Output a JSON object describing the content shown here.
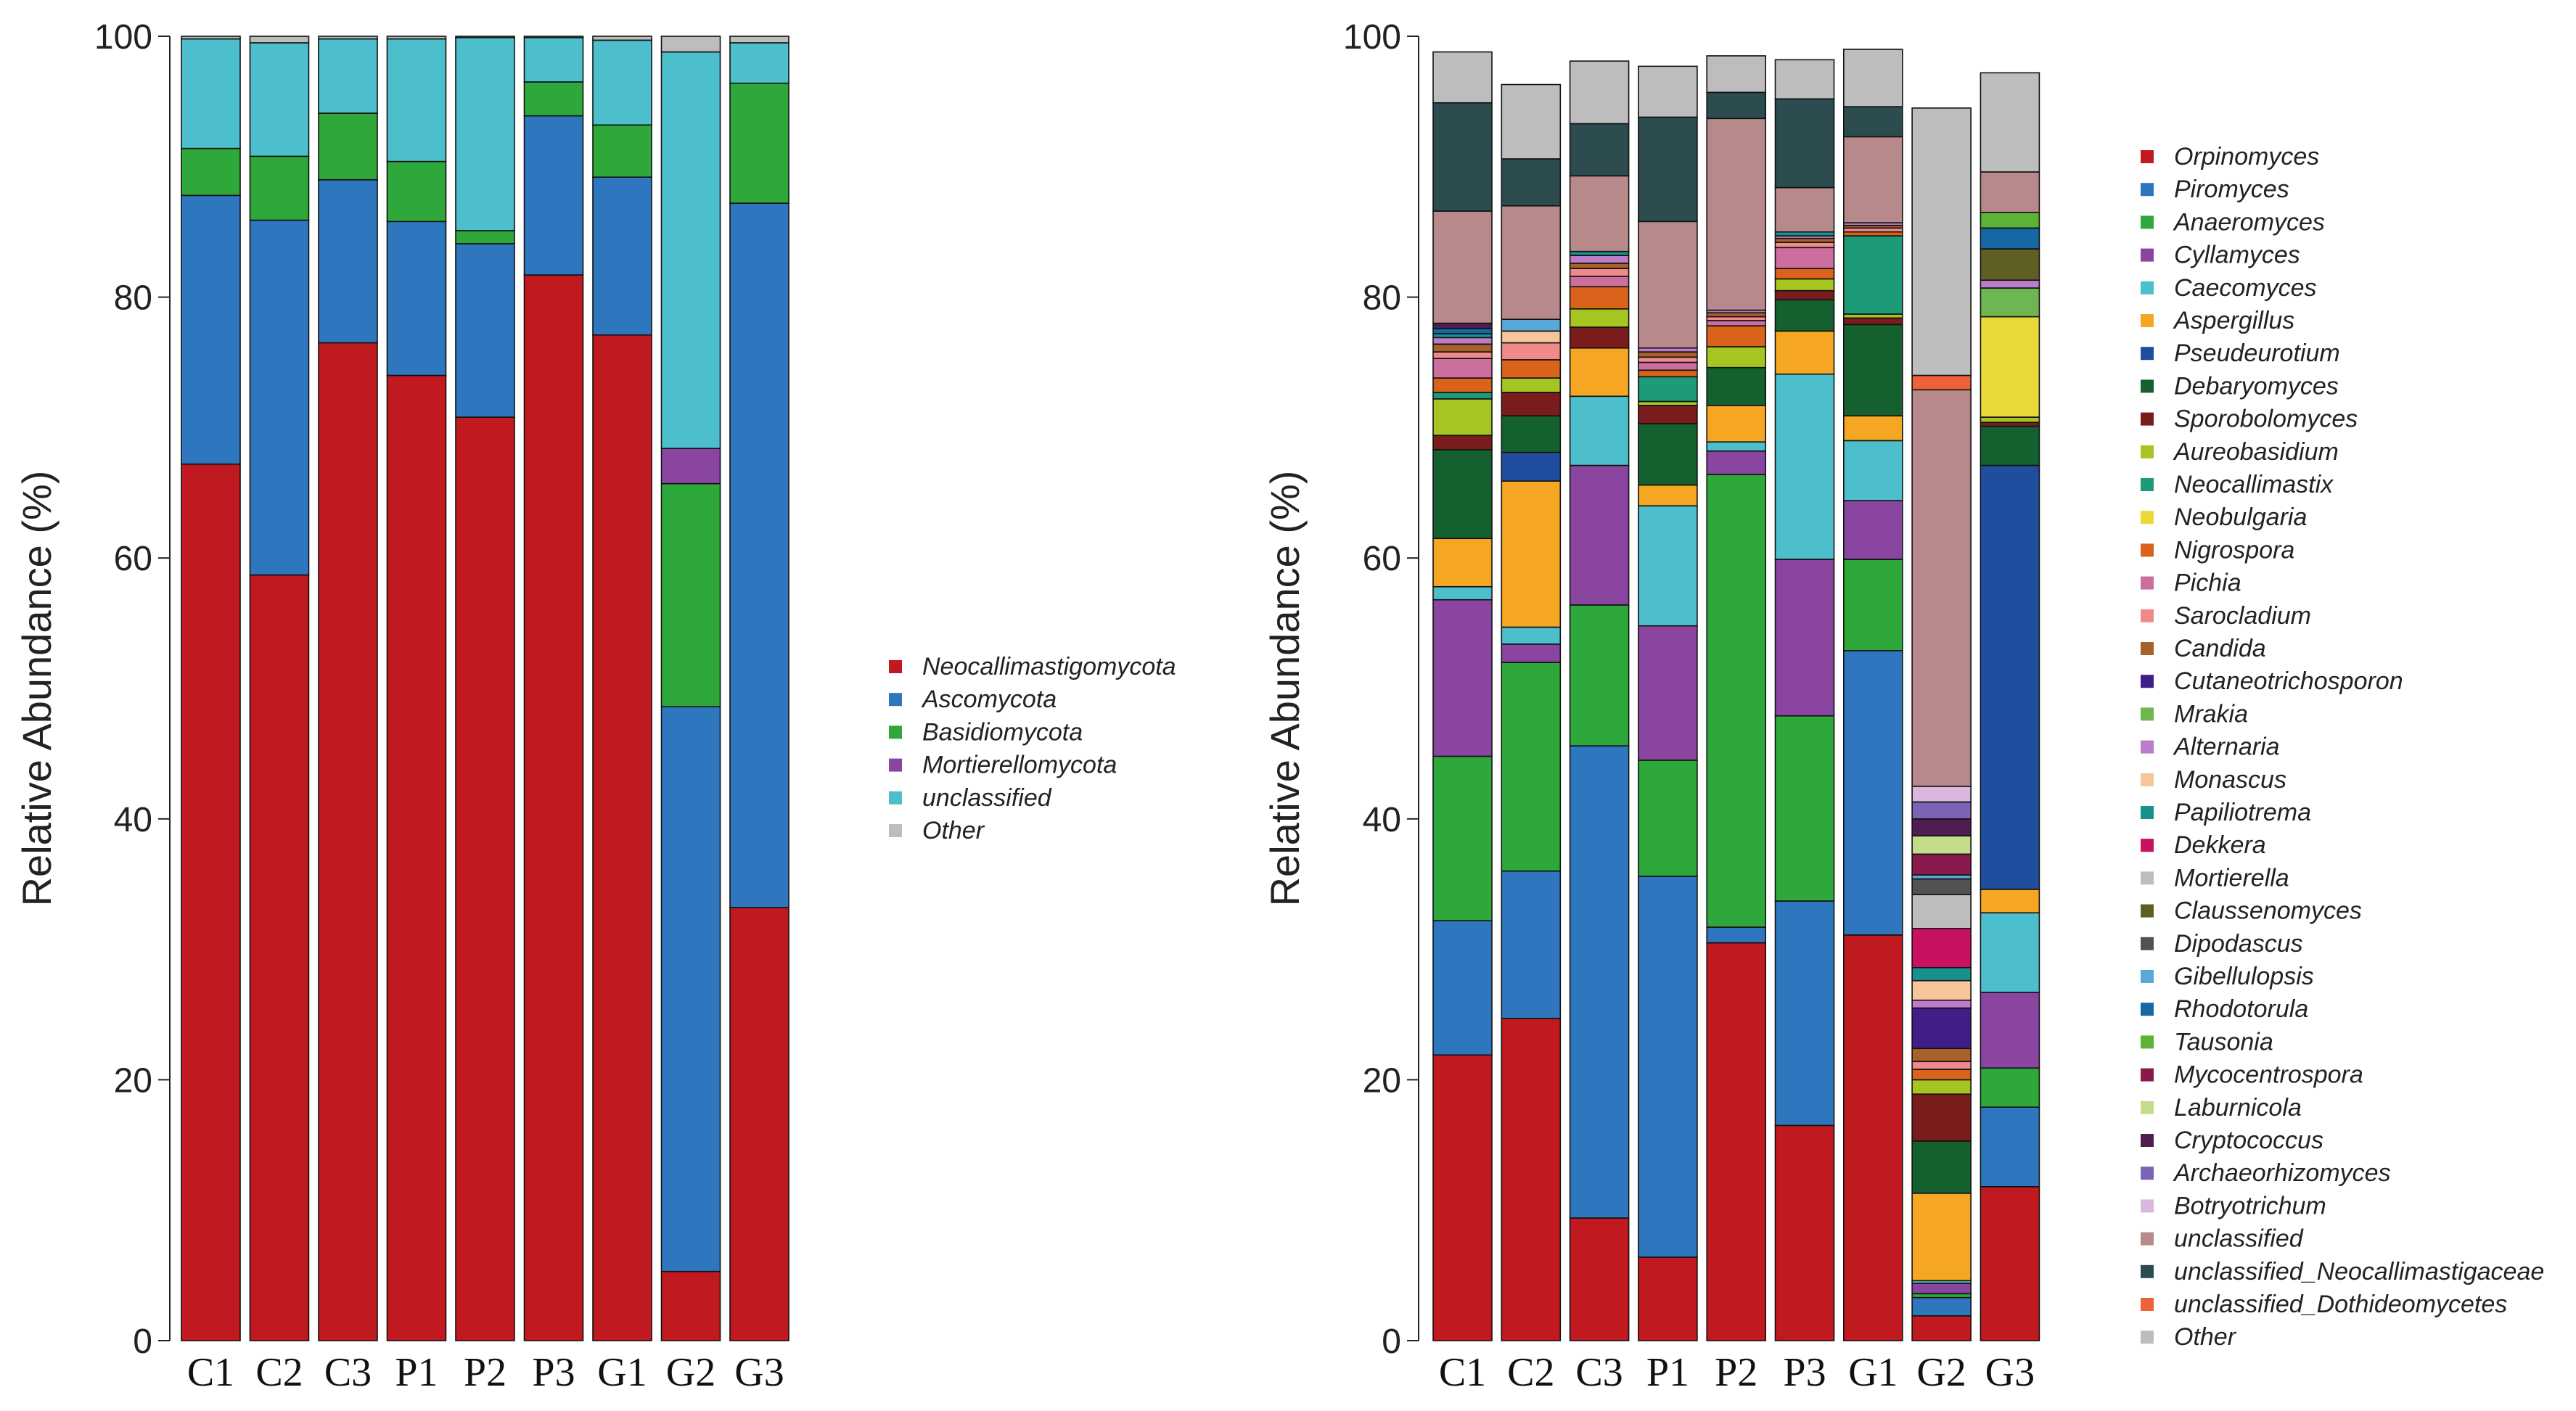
{
  "chart_data": [
    {
      "type": "bar",
      "stacked": true,
      "title": "",
      "xlabel": "",
      "ylabel": "Relative Abundance (%)",
      "ylim": [
        0,
        100
      ],
      "yticks": [
        "0",
        "20",
        "40",
        "60",
        "80",
        "100"
      ],
      "categories": [
        "C1",
        "C2",
        "C3",
        "P1",
        "P2",
        "P3",
        "G1",
        "G2",
        "G3"
      ],
      "series": [
        {
          "name": "Neocallimastigomycota",
          "color": "#c0191f",
          "values": [
            67.2,
            58.7,
            76.5,
            74.0,
            70.8,
            81.7,
            77.1,
            5.3,
            33.2
          ]
        },
        {
          "name": "Ascomycota",
          "color": "#2e77bf",
          "values": [
            20.6,
            27.2,
            12.5,
            11.8,
            13.3,
            12.2,
            12.1,
            43.3,
            54.0
          ]
        },
        {
          "name": "Basidiomycota",
          "color": "#2ea83a",
          "values": [
            3.6,
            4.9,
            5.1,
            4.6,
            1.0,
            2.6,
            4.0,
            17.1,
            9.2
          ]
        },
        {
          "name": "Mortierellomycota",
          "color": "#8a45a0",
          "values": [
            0.0,
            0.0,
            0.0,
            0.0,
            0.0,
            0.0,
            0.0,
            2.7,
            0.0
          ]
        },
        {
          "name": "unclassified",
          "color": "#4dbfcc",
          "values": [
            8.4,
            8.7,
            5.7,
            9.4,
            14.8,
            3.4,
            6.5,
            30.4,
            3.1
          ]
        },
        {
          "name": "Other",
          "color": "#bdbdbd",
          "values": [
            0.2,
            0.5,
            0.2,
            0.2,
            0.1,
            0.1,
            0.3,
            1.2,
            0.5
          ]
        }
      ]
    },
    {
      "type": "bar",
      "stacked": true,
      "title": "",
      "xlabel": "",
      "ylabel": "Relative Abundance (%)",
      "ylim": [
        0,
        100
      ],
      "yticks": [
        "0",
        "20",
        "40",
        "60",
        "80",
        "100"
      ],
      "categories": [
        "C1",
        "C2",
        "C3",
        "P1",
        "P2",
        "P3",
        "G1",
        "G2",
        "G3"
      ],
      "series": [
        {
          "name": "Orpinomyces",
          "color": "#c0191f",
          "values": [
            21.9,
            24.7,
            9.4,
            6.4,
            30.5,
            16.5,
            31.1,
            1.9,
            11.8
          ]
        },
        {
          "name": "Piromyces",
          "color": "#2e77bf",
          "values": [
            10.3,
            11.3,
            36.2,
            29.2,
            1.2,
            17.2,
            21.8,
            1.4,
            6.1
          ]
        },
        {
          "name": "Anaeromyces",
          "color": "#2ea83a",
          "values": [
            12.6,
            16.0,
            10.8,
            8.9,
            34.7,
            14.2,
            7.0,
            0.3,
            3.0
          ]
        },
        {
          "name": "Cyllamyces",
          "color": "#8a45a0",
          "values": [
            12.0,
            1.4,
            10.7,
            10.3,
            1.8,
            12.0,
            4.5,
            0.8,
            5.8
          ]
        },
        {
          "name": "Caecomyces",
          "color": "#4dbfcc",
          "values": [
            1.0,
            1.3,
            5.3,
            9.2,
            0.7,
            14.2,
            4.6,
            0.2,
            6.1
          ]
        },
        {
          "name": "Aspergillus",
          "color": "#f5a623",
          "values": [
            3.7,
            11.2,
            3.7,
            1.6,
            2.8,
            3.3,
            1.9,
            6.7,
            1.8
          ]
        },
        {
          "name": "Pseudeurotium",
          "color": "#1f4e9e",
          "values": [
            0.0,
            2.2,
            0.0,
            0.0,
            0.0,
            0.0,
            0.0,
            0.0,
            32.5
          ]
        },
        {
          "name": "Debaryomyces",
          "color": "#15602f",
          "values": [
            6.8,
            2.8,
            0.0,
            4.7,
            2.9,
            2.4,
            7.0,
            4.0,
            3.0
          ]
        },
        {
          "name": "Sporobolomyces",
          "color": "#7b1c1c",
          "values": [
            1.1,
            1.8,
            1.6,
            1.4,
            0.0,
            0.7,
            0.5,
            3.6,
            0.3
          ]
        },
        {
          "name": "Aureobasidium",
          "color": "#a7c520",
          "values": [
            2.8,
            1.1,
            1.4,
            0.3,
            1.6,
            0.9,
            0.3,
            1.1,
            0.4
          ]
        },
        {
          "name": "Neocallimastix",
          "color": "#1d9a78",
          "values": [
            0.5,
            0.0,
            0.0,
            1.9,
            0.0,
            0.0,
            6.0,
            0.0,
            0.0
          ]
        },
        {
          "name": "Neobulgaria",
          "color": "#e8d838",
          "values": [
            0.0,
            0.0,
            0.0,
            0.0,
            0.0,
            0.0,
            0.0,
            0.0,
            7.7
          ]
        },
        {
          "name": "Nigrospora",
          "color": "#d9631a",
          "values": [
            1.1,
            1.4,
            1.7,
            0.5,
            1.6,
            0.8,
            0.3,
            0.8,
            0.0
          ]
        },
        {
          "name": "Pichia",
          "color": "#cc6f9f",
          "values": [
            1.5,
            0.0,
            0.8,
            0.6,
            0.4,
            1.6,
            0.0,
            0.0,
            0.0
          ]
        },
        {
          "name": "Sarocladium",
          "color": "#ef8a8a",
          "values": [
            0.5,
            1.3,
            0.6,
            0.4,
            0.3,
            0.4,
            0.3,
            0.6,
            0.0
          ]
        },
        {
          "name": "Candida",
          "color": "#a8612a",
          "values": [
            0.6,
            0.0,
            0.4,
            0.4,
            0.3,
            0.3,
            0.2,
            1.0,
            0.0
          ]
        },
        {
          "name": "Cutaneotrichosporon",
          "color": "#3f1f87",
          "values": [
            0.0,
            0.0,
            0.0,
            0.0,
            0.0,
            0.0,
            0.0,
            3.1,
            0.0
          ]
        },
        {
          "name": "Mrakia",
          "color": "#6db650",
          "values": [
            0.0,
            0.0,
            0.0,
            0.0,
            0.0,
            0.0,
            0.0,
            0.0,
            2.2
          ]
        },
        {
          "name": "Alternaria",
          "color": "#bd7cc9",
          "values": [
            0.5,
            0.0,
            0.6,
            0.3,
            0.2,
            0.2,
            0.2,
            0.6,
            0.6
          ]
        },
        {
          "name": "Monascus",
          "color": "#f7c59a",
          "values": [
            0.0,
            0.9,
            0.0,
            0.0,
            0.0,
            0.0,
            0.0,
            1.5,
            0.0
          ]
        },
        {
          "name": "Papiliotrema",
          "color": "#17918e",
          "values": [
            0.3,
            0.0,
            0.3,
            0.0,
            0.0,
            0.3,
            0.0,
            1.0,
            0.0
          ]
        },
        {
          "name": "Dekkera",
          "color": "#c8115f",
          "values": [
            0.0,
            0.0,
            0.0,
            0.0,
            0.0,
            0.0,
            0.0,
            3.0,
            0.0
          ]
        },
        {
          "name": "Mortierella",
          "color": "#bdbdbd",
          "values": [
            0.0,
            0.0,
            0.0,
            0.0,
            0.0,
            0.0,
            0.0,
            2.6,
            0.0
          ]
        },
        {
          "name": "Claussenomyces",
          "color": "#5f5e25",
          "values": [
            0.0,
            0.0,
            0.0,
            0.0,
            0.0,
            0.0,
            0.0,
            0.0,
            2.4
          ]
        },
        {
          "name": "Dipodascus",
          "color": "#525252",
          "values": [
            0.0,
            0.0,
            0.0,
            0.0,
            0.0,
            0.0,
            0.0,
            1.2,
            0.0
          ]
        },
        {
          "name": "Gibellulopsis",
          "color": "#5aa8d8",
          "values": [
            0.0,
            0.9,
            0.0,
            0.0,
            0.0,
            0.0,
            0.0,
            0.3,
            0.0
          ]
        },
        {
          "name": "Rhodotorula",
          "color": "#1568a3",
          "values": [
            0.4,
            0.0,
            0.0,
            0.0,
            0.0,
            0.0,
            0.0,
            0.0,
            1.6
          ]
        },
        {
          "name": "Tausonia",
          "color": "#5bb436",
          "values": [
            0.0,
            0.0,
            0.0,
            0.0,
            0.0,
            0.0,
            0.0,
            0.0,
            1.2
          ]
        },
        {
          "name": "Mycocentrospora",
          "color": "#8a1a4c",
          "values": [
            0.0,
            0.0,
            0.0,
            0.0,
            0.0,
            0.0,
            0.0,
            1.6,
            0.0
          ]
        },
        {
          "name": "Laburnicola",
          "color": "#c2dc8a",
          "values": [
            0.0,
            0.0,
            0.0,
            0.0,
            0.0,
            0.0,
            0.0,
            1.4,
            0.0
          ]
        },
        {
          "name": "Cryptococcus",
          "color": "#4f1d4f",
          "values": [
            0.4,
            0.0,
            0.0,
            0.0,
            0.0,
            0.0,
            0.0,
            1.3,
            0.0
          ]
        },
        {
          "name": "Archaeorhizomyces",
          "color": "#7b64b6",
          "values": [
            0.0,
            0.0,
            0.0,
            0.0,
            0.0,
            0.0,
            0.0,
            1.3,
            0.0
          ]
        },
        {
          "name": "Botryotrichum",
          "color": "#dab8de",
          "values": [
            0.0,
            0.0,
            0.0,
            0.0,
            0.0,
            0.0,
            0.0,
            1.2,
            0.0
          ]
        },
        {
          "name": "unclassified",
          "color": "#b8898a",
          "values": [
            8.6,
            8.7,
            5.8,
            9.7,
            14.7,
            3.4,
            6.6,
            30.4,
            3.1
          ]
        },
        {
          "name": "unclassified_Neocallimastigaceae",
          "color": "#2c4c4f",
          "values": [
            8.3,
            3.6,
            4.0,
            8.0,
            2.0,
            6.8,
            2.3,
            0.0,
            0.0
          ]
        },
        {
          "name": "unclassified_Dothideomycetes",
          "color": "#ee6239",
          "values": [
            0.0,
            0.0,
            0.0,
            0.0,
            0.0,
            0.0,
            0.0,
            1.1,
            0.0
          ]
        },
        {
          "name": "Other",
          "color": "#bdbdbd",
          "values": [
            3.9,
            5.7,
            4.8,
            3.9,
            2.8,
            3.0,
            4.4,
            20.5,
            7.6
          ]
        }
      ]
    }
  ]
}
